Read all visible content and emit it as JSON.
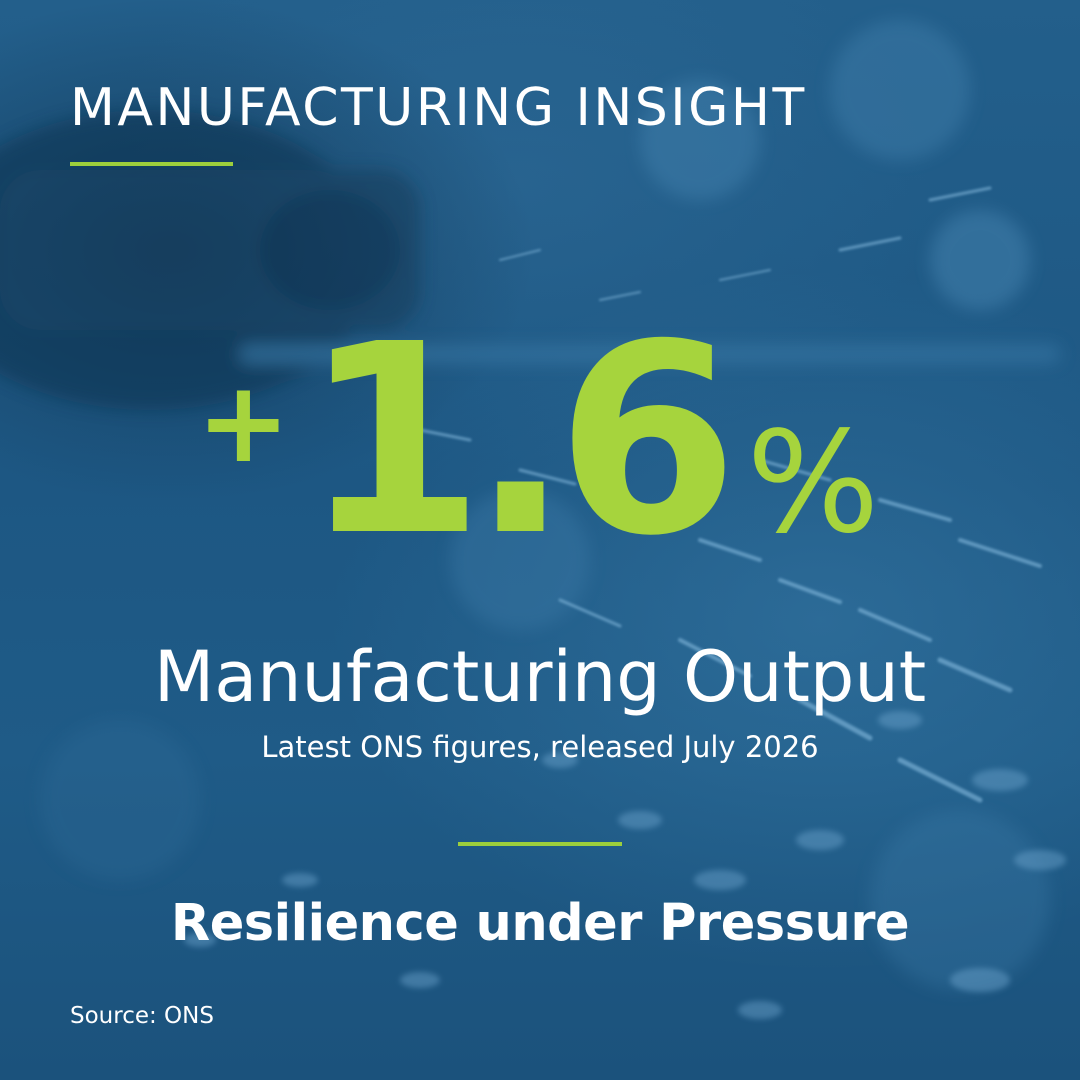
{
  "header": {
    "title": "MANUFACTURING INSIGHT"
  },
  "stat": {
    "sign": "+",
    "number": "1.6",
    "percent": "%"
  },
  "metric": {
    "label": "Manufacturing Output",
    "subtitle": "Latest ONS figures, released July 2026"
  },
  "tagline": "Resilience under Pressure",
  "source": "Source: ONS",
  "colors": {
    "background": "#1f5a86",
    "accent": "#a6d43d",
    "text": "#ffffff"
  },
  "background_image": {
    "icon": "angle-grinder-sparks-photo"
  }
}
